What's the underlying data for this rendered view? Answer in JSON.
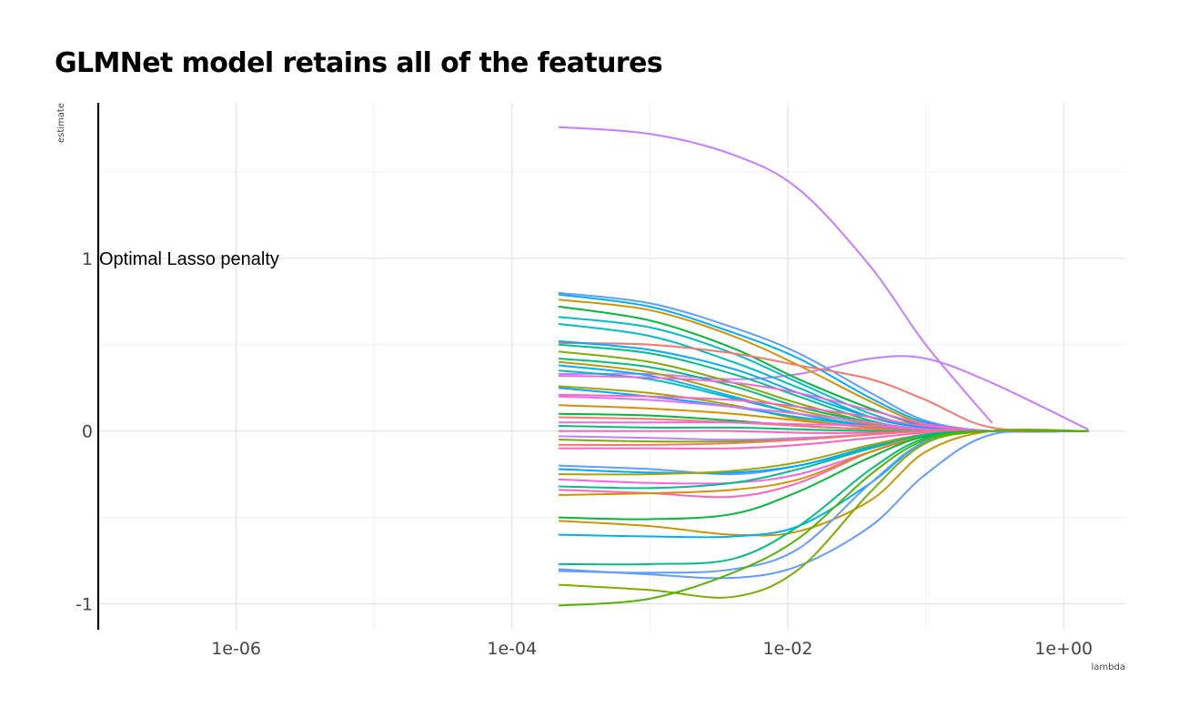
{
  "chart_data": {
    "type": "line",
    "title": "GLMNet model retains all of the features",
    "xlabel": "lambda",
    "ylabel": "estimate",
    "x_scale": "log10",
    "xlim": [
      1e-07,
      2.8
    ],
    "ylim": [
      -1.15,
      1.9
    ],
    "x_ticks": [
      {
        "value": 1e-06,
        "label": "1e-06"
      },
      {
        "value": 0.0001,
        "label": "1e-04"
      },
      {
        "value": 0.01,
        "label": "1e-02"
      },
      {
        "value": 1,
        "label": "1e+00"
      }
    ],
    "y_ticks": [
      {
        "value": -1,
        "label": "-1"
      },
      {
        "value": 0,
        "label": "0"
      },
      {
        "value": 1,
        "label": "1"
      }
    ],
    "grid": true,
    "legend": "none",
    "vline": {
      "x": 1e-07,
      "label": "Optimal Lasso penalty",
      "label_y": 1.0,
      "color": "#000000"
    },
    "lambda": [
      0.00022,
      0.001,
      0.004,
      0.012,
      0.04,
      0.1,
      0.3,
      1.5
    ],
    "series": [
      {
        "color": "#C77CFF",
        "values": [
          1.76,
          1.72,
          1.6,
          1.4,
          0.95,
          0.5,
          0.05,
          null
        ]
      },
      {
        "color": "#C77CFF",
        "values": [
          0.33,
          0.33,
          0.3,
          0.33,
          0.42,
          0.42,
          0.28,
          0.01
        ]
      },
      {
        "color": "#619CFF",
        "values": [
          0.8,
          0.74,
          0.6,
          0.45,
          0.22,
          0.06,
          0.0,
          0.0
        ]
      },
      {
        "color": "#00B0F6",
        "values": [
          0.79,
          0.72,
          0.57,
          0.42,
          0.19,
          0.05,
          0.0,
          0.0
        ]
      },
      {
        "color": "#CD9600",
        "values": [
          0.76,
          0.7,
          0.55,
          0.38,
          0.17,
          0.04,
          0.0,
          0.0
        ]
      },
      {
        "color": "#00BA38",
        "values": [
          0.72,
          0.64,
          0.48,
          0.3,
          0.13,
          0.03,
          0.0,
          0.0
        ]
      },
      {
        "color": "#00BFC4",
        "values": [
          0.66,
          0.6,
          0.45,
          0.28,
          0.1,
          0.02,
          0.0,
          0.0
        ]
      },
      {
        "color": "#00BFC4",
        "values": [
          0.62,
          0.55,
          0.4,
          0.25,
          0.08,
          0.02,
          0.0,
          0.0
        ]
      },
      {
        "color": "#F8766D",
        "values": [
          0.51,
          0.5,
          0.45,
          0.38,
          0.3,
          0.18,
          0.02,
          0.0
        ]
      },
      {
        "color": "#00A9FF",
        "values": [
          0.52,
          0.47,
          0.36,
          0.22,
          0.08,
          0.02,
          0.0,
          0.0
        ]
      },
      {
        "color": "#00C08B",
        "values": [
          0.5,
          0.45,
          0.33,
          0.2,
          0.06,
          0.01,
          0.0,
          0.0
        ]
      },
      {
        "color": "#7CAE00",
        "values": [
          0.46,
          0.4,
          0.28,
          0.16,
          0.05,
          0.01,
          0.0,
          0.0
        ]
      },
      {
        "color": "#00BF7D",
        "values": [
          0.42,
          0.37,
          0.26,
          0.14,
          0.05,
          0.01,
          0.0,
          0.0
        ]
      },
      {
        "color": "#B79F00",
        "values": [
          0.4,
          0.34,
          0.22,
          0.12,
          0.04,
          0.0,
          0.0,
          0.0
        ]
      },
      {
        "color": "#00B0F6",
        "values": [
          0.38,
          0.32,
          0.2,
          0.1,
          0.03,
          0.0,
          0.0,
          0.0
        ]
      },
      {
        "color": "#00BFC4",
        "values": [
          0.35,
          0.3,
          0.19,
          0.1,
          0.03,
          0.0,
          0.0,
          0.0
        ]
      },
      {
        "color": "#F564E3",
        "values": [
          0.32,
          0.31,
          0.28,
          0.22,
          0.12,
          0.04,
          0.0,
          0.0
        ]
      },
      {
        "color": "#A3A500",
        "values": [
          0.26,
          0.22,
          0.15,
          0.07,
          0.02,
          0.0,
          0.0,
          0.0
        ]
      },
      {
        "color": "#00A9FF",
        "values": [
          0.25,
          0.2,
          0.14,
          0.08,
          0.03,
          0.0,
          0.0,
          0.0
        ]
      },
      {
        "color": "#FF61C3",
        "values": [
          0.21,
          0.2,
          0.18,
          0.14,
          0.08,
          0.03,
          0.0,
          0.0
        ]
      },
      {
        "color": "#E76BF3",
        "values": [
          0.2,
          0.18,
          0.14,
          0.1,
          0.05,
          0.01,
          0.0,
          0.0
        ]
      },
      {
        "color": "#D89000",
        "values": [
          0.15,
          0.13,
          0.1,
          0.06,
          0.02,
          0.0,
          0.0,
          0.0
        ]
      },
      {
        "color": "#00BA38",
        "values": [
          0.1,
          0.09,
          0.06,
          0.03,
          0.01,
          0.0,
          0.0,
          0.0
        ]
      },
      {
        "color": "#F8766D",
        "values": [
          0.08,
          0.07,
          0.05,
          0.03,
          0.01,
          0.0,
          0.0,
          0.0
        ]
      },
      {
        "color": "#F564E3",
        "values": [
          0.05,
          0.05,
          0.05,
          0.04,
          0.03,
          0.01,
          0.0,
          0.0
        ]
      },
      {
        "color": "#00BF7D",
        "values": [
          0.03,
          0.02,
          0.02,
          0.01,
          0.0,
          0.0,
          0.0,
          0.0
        ]
      },
      {
        "color": "#FF62BC",
        "values": [
          0.0,
          0.0,
          0.0,
          -0.01,
          -0.01,
          0.0,
          0.0,
          0.0
        ]
      },
      {
        "color": "#C77CFF",
        "values": [
          -0.03,
          -0.04,
          -0.05,
          -0.04,
          -0.02,
          0.0,
          0.0,
          0.0
        ]
      },
      {
        "color": "#7CAE00",
        "values": [
          -0.05,
          -0.06,
          -0.06,
          -0.05,
          -0.02,
          0.0,
          0.0,
          0.0
        ]
      },
      {
        "color": "#F8766D",
        "values": [
          -0.08,
          -0.08,
          -0.07,
          -0.05,
          -0.02,
          0.0,
          0.0,
          0.0
        ]
      },
      {
        "color": "#FF61C3",
        "values": [
          -0.1,
          -0.1,
          -0.1,
          -0.08,
          -0.04,
          -0.01,
          0.0,
          0.0
        ]
      },
      {
        "color": "#619CFF",
        "values": [
          -0.2,
          -0.22,
          -0.25,
          -0.2,
          -0.1,
          -0.02,
          0.0,
          0.0
        ]
      },
      {
        "color": "#00A9FF",
        "values": [
          -0.22,
          -0.24,
          -0.24,
          -0.2,
          -0.09,
          -0.02,
          0.0,
          0.0
        ]
      },
      {
        "color": "#A3A500",
        "values": [
          -0.25,
          -0.25,
          -0.23,
          -0.18,
          -0.08,
          -0.02,
          0.0,
          0.0
        ]
      },
      {
        "color": "#F564E3",
        "values": [
          -0.28,
          -0.3,
          -0.3,
          -0.25,
          -0.12,
          -0.03,
          0.0,
          0.0
        ]
      },
      {
        "color": "#00C08B",
        "values": [
          -0.32,
          -0.33,
          -0.3,
          -0.22,
          -0.1,
          -0.02,
          0.0,
          0.0
        ]
      },
      {
        "color": "#FF62BC",
        "values": [
          -0.34,
          -0.36,
          -0.38,
          -0.3,
          -0.12,
          -0.03,
          0.0,
          0.0
        ]
      },
      {
        "color": "#D89000",
        "values": [
          -0.37,
          -0.36,
          -0.34,
          -0.28,
          -0.12,
          -0.03,
          0.0,
          0.0
        ]
      },
      {
        "color": "#00BA38",
        "values": [
          -0.5,
          -0.51,
          -0.48,
          -0.35,
          -0.15,
          -0.03,
          0.0,
          0.0
        ]
      },
      {
        "color": "#CD9600",
        "values": [
          -0.52,
          -0.55,
          -0.6,
          -0.58,
          -0.4,
          -0.12,
          0.0,
          0.0
        ]
      },
      {
        "color": "#00B0F6",
        "values": [
          -0.6,
          -0.61,
          -0.61,
          -0.55,
          -0.3,
          -0.06,
          0.0,
          0.0
        ]
      },
      {
        "color": "#00BF7D",
        "values": [
          -0.77,
          -0.77,
          -0.74,
          -0.55,
          -0.22,
          -0.04,
          0.0,
          0.0
        ]
      },
      {
        "color": "#619CFF",
        "values": [
          -0.8,
          -0.83,
          -0.85,
          -0.78,
          -0.55,
          -0.25,
          -0.02,
          0.0
        ]
      },
      {
        "color": "#619CFF",
        "values": [
          -0.81,
          -0.82,
          -0.8,
          -0.68,
          -0.3,
          -0.06,
          0.0,
          0.0
        ]
      },
      {
        "color": "#7CAE00",
        "values": [
          -0.89,
          -0.92,
          -0.96,
          -0.8,
          -0.35,
          -0.07,
          0.0,
          0.0
        ]
      },
      {
        "color": "#53B400",
        "values": [
          -1.01,
          -0.97,
          -0.82,
          -0.62,
          -0.25,
          -0.05,
          0.0,
          0.0
        ]
      }
    ]
  }
}
